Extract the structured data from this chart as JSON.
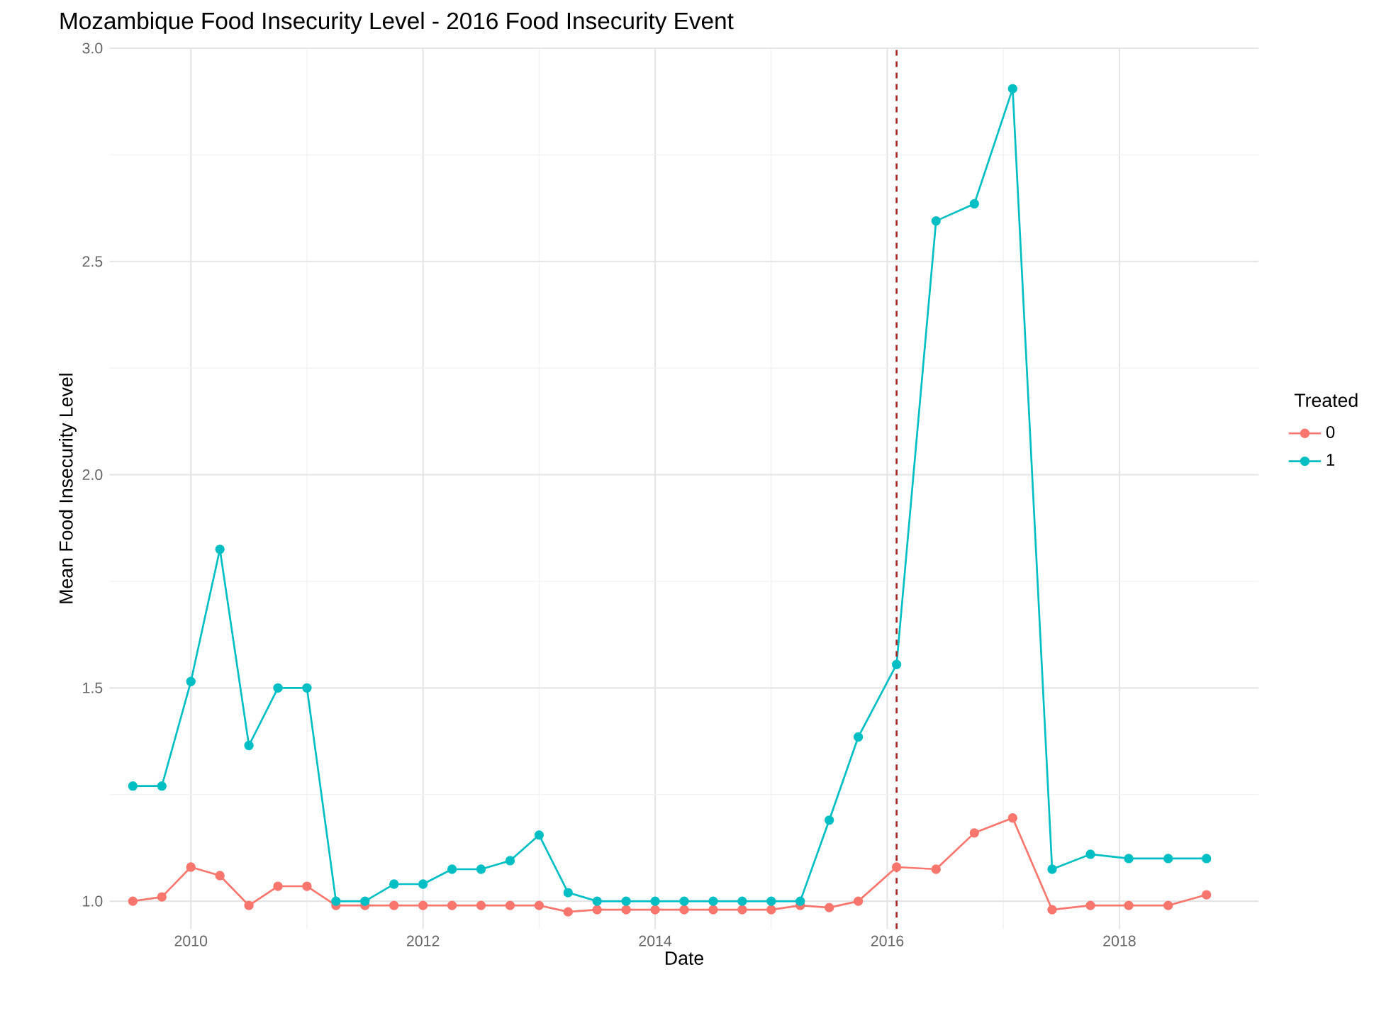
{
  "chart_data": {
    "type": "line",
    "title": "Mozambique Food Insecurity Level - 2016 Food Insecurity Event",
    "xlabel": "Date",
    "ylabel": "Mean Food Insecurity Level",
    "legend_title": "Treated",
    "x": [
      2009.5,
      2009.75,
      2010.0,
      2010.25,
      2010.5,
      2010.75,
      2011.0,
      2011.25,
      2011.5,
      2011.75,
      2012.0,
      2012.25,
      2012.5,
      2012.75,
      2013.0,
      2013.25,
      2013.5,
      2013.75,
      2014.0,
      2014.25,
      2014.5,
      2014.75,
      2015.0,
      2015.25,
      2015.5,
      2015.75,
      2016.08,
      2016.42,
      2016.75,
      2017.08,
      2017.42,
      2017.75,
      2018.08,
      2018.42,
      2018.75
    ],
    "series": [
      {
        "name": "0",
        "color": "#f8766d",
        "values": [
          1.0,
          1.01,
          1.08,
          1.06,
          0.99,
          1.035,
          1.035,
          0.99,
          0.99,
          0.99,
          0.99,
          0.99,
          0.99,
          0.99,
          0.99,
          0.975,
          0.98,
          0.98,
          0.98,
          0.98,
          0.98,
          0.98,
          0.98,
          0.99,
          0.985,
          1.0,
          1.08,
          1.075,
          1.16,
          1.195,
          0.98,
          0.99,
          0.99,
          0.99,
          1.015
        ]
      },
      {
        "name": "1",
        "color": "#00bfc4",
        "values": [
          1.27,
          1.27,
          1.515,
          1.825,
          1.365,
          1.5,
          1.5,
          1.0,
          1.0,
          1.04,
          1.04,
          1.075,
          1.075,
          1.095,
          1.155,
          1.02,
          1.0,
          1.0,
          1.0,
          1.0,
          1.0,
          1.0,
          1.0,
          1.0,
          1.19,
          1.385,
          1.555,
          2.595,
          2.635,
          2.905,
          1.075,
          1.11,
          1.1,
          1.1,
          1.1
        ]
      }
    ],
    "xlim": [
      2009.3,
      2019.2
    ],
    "ylim": [
      0.935,
      3.0
    ],
    "xticks": [
      2010,
      2012,
      2014,
      2016,
      2018
    ],
    "yticks": [
      {
        "value": 1,
        "label": "1.0"
      },
      1.5,
      {
        "value": 2,
        "label": "2.0"
      },
      2.5,
      {
        "value": 3,
        "label": "3.0"
      }
    ],
    "ref_lines": [
      {
        "axis": "x",
        "value": 2016.08,
        "color": "#a52a2a",
        "line_style": "dashed"
      }
    ],
    "grid": true,
    "legend": "right",
    "marker": "circle",
    "line_style": "solid"
  }
}
